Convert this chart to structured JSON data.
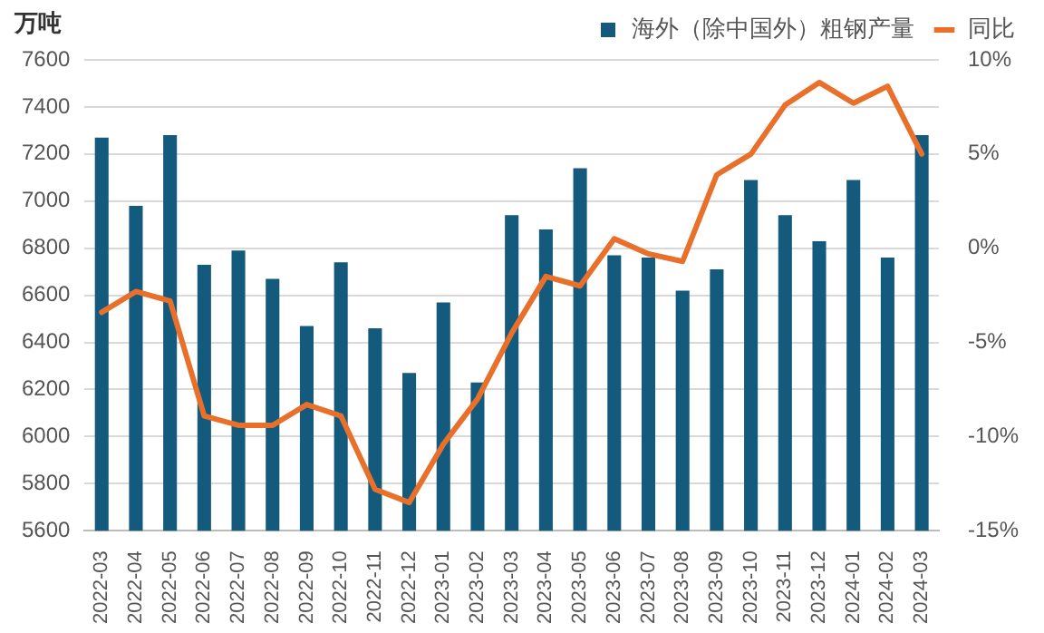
{
  "chart_data": {
    "type": "bar",
    "ylabel": "万吨",
    "categories": [
      "2022-03",
      "2022-04",
      "2022-05",
      "2022-06",
      "2022-07",
      "2022-08",
      "2022-09",
      "2022-10",
      "2022-11",
      "2022-12",
      "2023-01",
      "2023-02",
      "2023-03",
      "2023-04",
      "2023-05",
      "2023-06",
      "2023-07",
      "2023-08",
      "2023-09",
      "2023-10",
      "2023-11",
      "2023-12",
      "2024-01",
      "2024-02",
      "2024-03"
    ],
    "series": [
      {
        "name": "海外（除中国外）粗钢产量",
        "color": "#145a7c",
        "values": [
          7270,
          6980,
          7280,
          6730,
          6790,
          6670,
          6470,
          6740,
          6460,
          6270,
          6570,
          6230,
          6940,
          6880,
          7140,
          6770,
          6760,
          6620,
          6710,
          7090,
          6940,
          6830,
          7090,
          6760,
          7280
        ]
      },
      {
        "name": "同比",
        "type": "line",
        "axis": "y2",
        "color": "#e8702a",
        "values": [
          -3.4,
          -2.3,
          -2.8,
          -8.9,
          -9.4,
          -9.4,
          -8.3,
          -8.9,
          -12.8,
          -13.5,
          -10.4,
          -8.0,
          -4.5,
          -1.5,
          -2.0,
          0.5,
          -0.3,
          -0.7,
          3.9,
          5.0,
          7.6,
          8.8,
          7.7,
          8.6,
          5.0
        ]
      }
    ],
    "ylim": [
      5600,
      7600
    ],
    "yticks": [
      5600,
      5800,
      6000,
      6200,
      6400,
      6600,
      6800,
      7000,
      7200,
      7400,
      7600
    ],
    "y2lim": [
      -15,
      10
    ],
    "y2ticks": [
      {
        "value": -15,
        "label": "-15%"
      },
      {
        "value": -10,
        "label": "-10%"
      },
      {
        "value": -5,
        "label": "-5%"
      },
      {
        "value": 0,
        "label": "0%"
      },
      {
        "value": 5,
        "label": "5%"
      },
      {
        "value": 10,
        "label": "10%"
      }
    ],
    "grid": "y",
    "legend": "top",
    "marker": "none",
    "line_style": "solid"
  }
}
